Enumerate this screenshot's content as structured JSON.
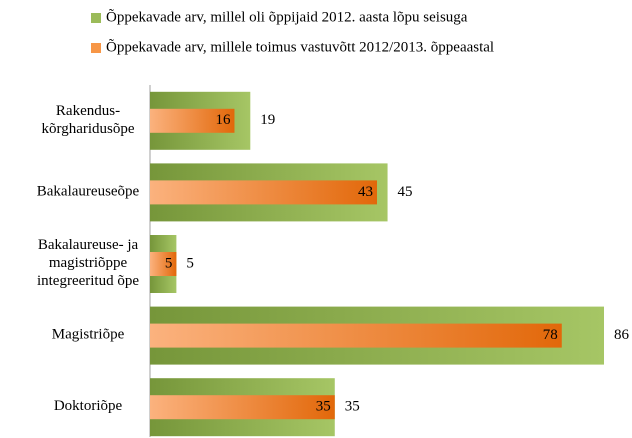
{
  "chart_data": {
    "type": "bar",
    "orientation": "horizontal",
    "categories": [
      "Rakendus-\nkõrgharidusõpe",
      "Bakalaureuseõpe",
      "Bakalaureuse- ja\nmagistriõppe\nintegreeritud õpe",
      "Magistriõpe",
      "Doktoriõpe"
    ],
    "series": [
      {
        "name": "Õppekavade arv, millel oli õppijaid 2012. aasta lõpu seisuga",
        "color": "#9bbb59",
        "values": [
          19,
          45,
          5,
          86,
          35
        ]
      },
      {
        "name": "Õppekavade arv, millele toimus vastuvõtt 2012/2013. õppeaastal",
        "color": "#f79646",
        "values": [
          16,
          43,
          5,
          78,
          35
        ]
      }
    ]
  }
}
